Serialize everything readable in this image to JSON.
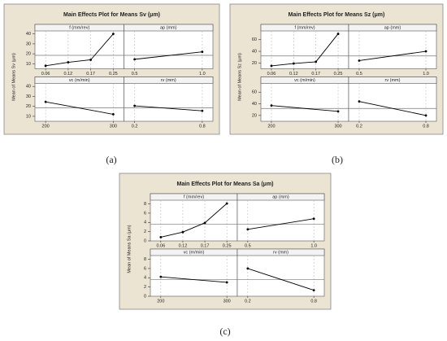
{
  "chart_data": [
    {
      "type": "line",
      "title": "Main Effects Plot for Means Sv (μm)",
      "ylabel": "Mean of Means Sv (μm)",
      "caption": "(a)",
      "ylim": [
        5,
        43
      ],
      "yticks": [
        10,
        20,
        30,
        40
      ],
      "mean": 18.5,
      "color": "#000000",
      "grid": true,
      "panels": [
        {
          "label": "f (mm/rev)",
          "categories": [
            "0.06",
            "0.12",
            "0.17",
            "0.25"
          ],
          "values": [
            8,
            11.5,
            14,
            40
          ]
        },
        {
          "label": "ap (mm)",
          "categories": [
            "0.5",
            "1.0"
          ],
          "values": [
            14.5,
            22
          ]
        },
        {
          "label": "vc (m/min)",
          "categories": [
            "200",
            "300"
          ],
          "values": [
            24.5,
            12
          ]
        },
        {
          "label": "rv (mm)",
          "categories": [
            "0.2",
            "0.8"
          ],
          "values": [
            20.5,
            15.5
          ]
        }
      ]
    },
    {
      "type": "line",
      "title": "Main Effects Plot for Means Sz (μm)",
      "ylabel": "Mean of Means Sz (μm)",
      "caption": "(b)",
      "ylim": [
        10,
        75
      ],
      "yticks": [
        20,
        40,
        60
      ],
      "mean": 32,
      "color": "#000000",
      "grid": true,
      "panels": [
        {
          "label": "f (mm/rev)",
          "categories": [
            "0.06",
            "0.12",
            "0.17",
            "0.25"
          ],
          "values": [
            15,
            19,
            22,
            70
          ]
        },
        {
          "label": "ap (mm)",
          "categories": [
            "0.5",
            "1.0"
          ],
          "values": [
            24,
            40
          ]
        },
        {
          "label": "vc (m/min)",
          "categories": [
            "200",
            "300"
          ],
          "values": [
            37,
            27
          ]
        },
        {
          "label": "rv (mm)",
          "categories": [
            "0.2",
            "0.8"
          ],
          "values": [
            44,
            20
          ]
        }
      ]
    },
    {
      "type": "line",
      "title": "Main Effects Plot for Means Sa (μm)",
      "ylabel": "Mean of Means Sa (μm)",
      "caption": "(c)",
      "ylim": [
        0,
        8.8
      ],
      "yticks": [
        0,
        2,
        4,
        6,
        8
      ],
      "mean": 3.6,
      "color": "#000000",
      "grid": true,
      "panels": [
        {
          "label": "f (mm/rev)",
          "categories": [
            "0.06",
            "0.12",
            "0.17",
            "0.25"
          ],
          "values": [
            0.8,
            1.9,
            3.9,
            8.1
          ]
        },
        {
          "label": "ap (mm)",
          "categories": [
            "0.5",
            "1.0"
          ],
          "values": [
            2.5,
            4.8
          ]
        },
        {
          "label": "vc (m/min)",
          "categories": [
            "200",
            "300"
          ],
          "values": [
            4.2,
            3.0
          ]
        },
        {
          "label": "rv (mm)",
          "categories": [
            "0.2",
            "0.8"
          ],
          "values": [
            6,
            1.3
          ]
        }
      ]
    }
  ]
}
